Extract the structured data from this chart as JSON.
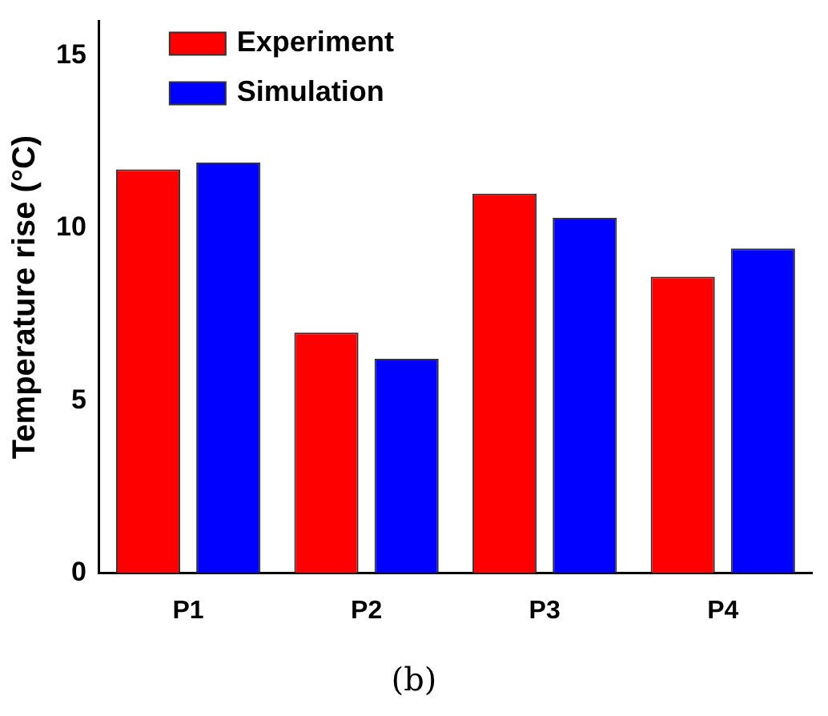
{
  "chart_data": {
    "type": "bar",
    "ylabel": "Temperature rise (°C)",
    "categories": [
      "P1",
      "P2",
      "P3",
      "P4"
    ],
    "series": [
      {
        "name": "Experiment",
        "color": "#ff0000",
        "values": [
          11.7,
          6.97,
          11.0,
          8.59
        ]
      },
      {
        "name": "Simulation",
        "color": "#0000ff",
        "values": [
          11.9,
          6.21,
          10.3,
          9.41
        ]
      }
    ],
    "ylim": [
      0,
      16
    ],
    "yticks": [
      0,
      5,
      10,
      15
    ],
    "grid": false,
    "legend": "top left",
    "annotations": [
      "(b)"
    ]
  }
}
